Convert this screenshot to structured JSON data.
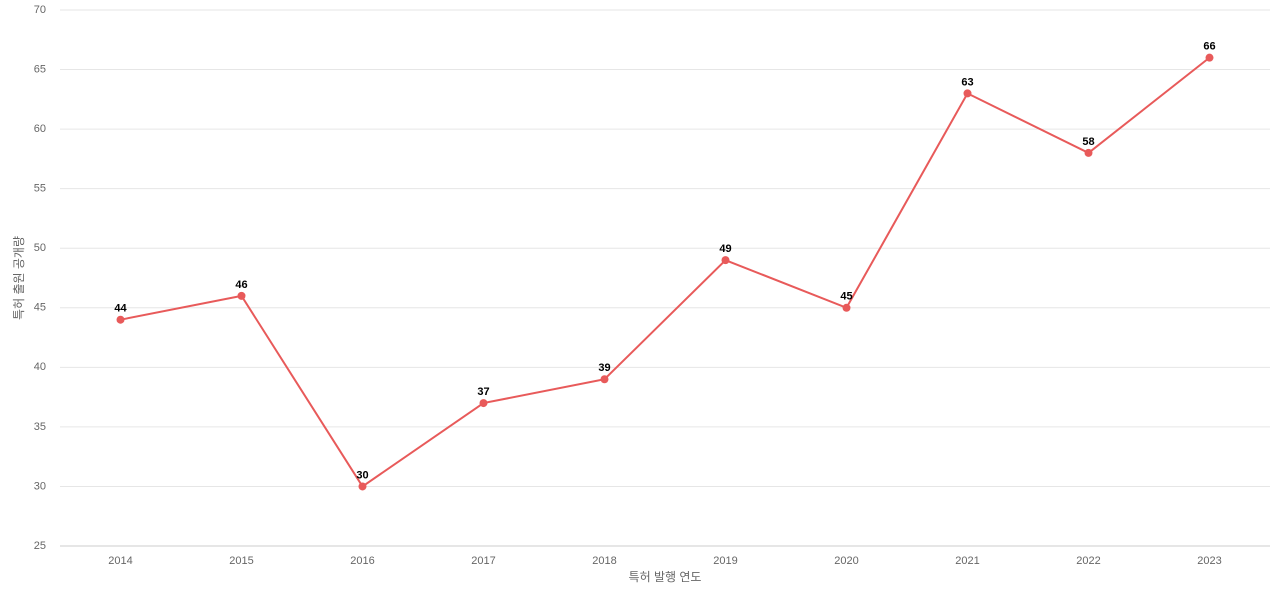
{
  "chart_data": {
    "type": "line",
    "x_label": "특허 발행 연도",
    "y_label": "특허 출원 공개량",
    "categories": [
      "2014",
      "2015",
      "2016",
      "2017",
      "2018",
      "2019",
      "2020",
      "2021",
      "2022",
      "2023"
    ],
    "values": [
      44,
      46,
      30,
      37,
      39,
      49,
      45,
      63,
      58,
      66
    ],
    "color": "#e85a5a",
    "ylim": [
      25,
      70
    ],
    "yticks": [
      25,
      30,
      35,
      40,
      45,
      50,
      55,
      60,
      65,
      70
    ],
    "grid": true
  }
}
